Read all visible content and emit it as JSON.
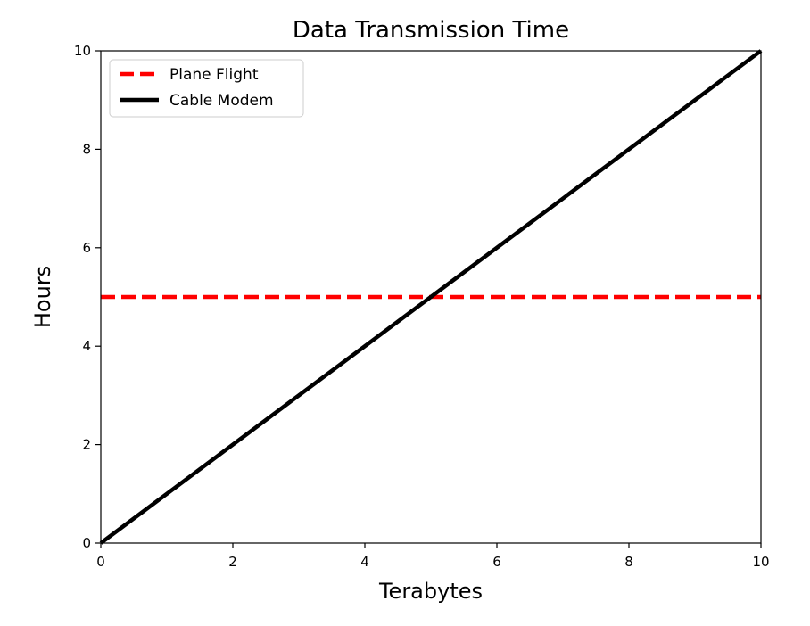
{
  "chart_data": {
    "type": "line",
    "title": "Data Transmission Time",
    "xlabel": "Terabytes",
    "ylabel": "Hours",
    "xlim": [
      0,
      10
    ],
    "ylim": [
      0,
      10
    ],
    "xticks": [
      "0",
      "2",
      "4",
      "6",
      "8",
      "10"
    ],
    "yticks": [
      "0",
      "2",
      "4",
      "6",
      "8",
      "10"
    ],
    "grid": false,
    "legend_position": "top-left",
    "series": [
      {
        "name": "Plane Flight",
        "style": "dashed",
        "color": "#ff0000",
        "x": [
          0,
          10
        ],
        "y": [
          5,
          5
        ]
      },
      {
        "name": "Cable Modem",
        "style": "solid",
        "color": "#000000",
        "x": [
          0,
          10
        ],
        "y": [
          0,
          10
        ]
      }
    ]
  }
}
